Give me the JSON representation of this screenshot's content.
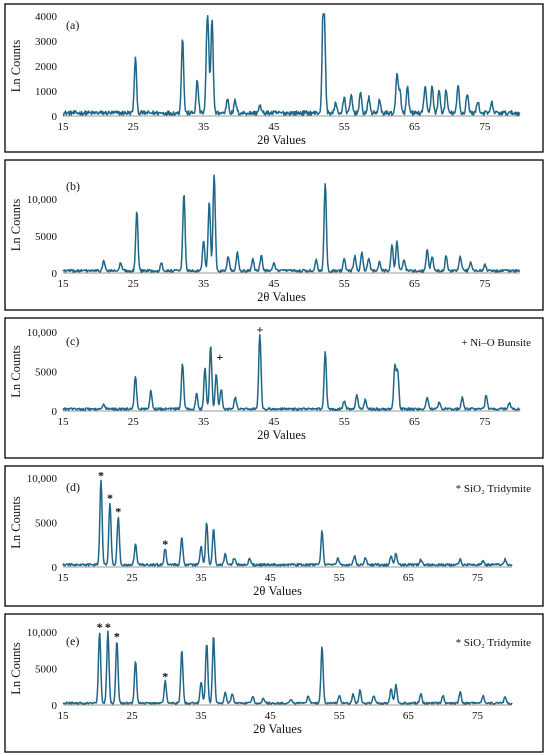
{
  "colors": {
    "trace": "#1f6788",
    "frame": "#000000",
    "axis": "#9a9a9a"
  },
  "chart_data": [
    {
      "type": "line",
      "panel_label": "(a)",
      "xlabel": "2θ Values",
      "ylabel": "Ln Counts",
      "xlim": [
        15,
        80
      ],
      "ylim": [
        0,
        4000
      ],
      "xticks": [
        "15",
        "25",
        "35",
        "45",
        "55",
        "65",
        "75"
      ],
      "yticks": [
        "0",
        "1000",
        "2000",
        "3000",
        "4000"
      ],
      "ytick_values": [
        0,
        1000,
        2000,
        3000,
        4000
      ],
      "baseline": 120,
      "noise": 90,
      "peaks": [
        [
          25.3,
          2200
        ],
        [
          32.0,
          3000
        ],
        [
          34.1,
          1300
        ],
        [
          35.5,
          3000
        ],
        [
          35.7,
          1600
        ],
        [
          36.2,
          3800
        ],
        [
          38.4,
          600
        ],
        [
          39.5,
          500
        ],
        [
          43.0,
          300
        ],
        [
          52.0,
          3500
        ],
        [
          52.2,
          2500
        ],
        [
          53.8,
          400
        ],
        [
          55.0,
          600
        ],
        [
          56.0,
          700
        ],
        [
          57.3,
          800
        ],
        [
          58.5,
          600
        ],
        [
          60.0,
          500
        ],
        [
          62.5,
          1500
        ],
        [
          62.9,
          900
        ],
        [
          64.0,
          1000
        ],
        [
          66.5,
          1100
        ],
        [
          67.5,
          1100
        ],
        [
          68.5,
          900
        ],
        [
          69.5,
          900
        ],
        [
          71.2,
          1100
        ],
        [
          72.5,
          800
        ],
        [
          74.0,
          500
        ],
        [
          76.0,
          400
        ]
      ],
      "legend": "",
      "markers": []
    },
    {
      "type": "line",
      "panel_label": "(b)",
      "xlabel": "2θ Values",
      "ylabel": "Ln Counts",
      "xlim": [
        15,
        80
      ],
      "ylim": [
        0,
        13000
      ],
      "xticks": [
        "15",
        "25",
        "35",
        "45",
        "55",
        "65",
        "75"
      ],
      "yticks": [
        "0",
        "5000",
        "10,000"
      ],
      "ytick_values": [
        0,
        5000,
        10000
      ],
      "baseline": 300,
      "noise": 180,
      "peaks": [
        [
          20.8,
          1300
        ],
        [
          23.2,
          1000
        ],
        [
          25.5,
          8000
        ],
        [
          29.0,
          1000
        ],
        [
          32.2,
          10500
        ],
        [
          35.0,
          4000
        ],
        [
          35.8,
          9500
        ],
        [
          36.5,
          13000
        ],
        [
          38.5,
          2000
        ],
        [
          39.8,
          2500
        ],
        [
          42.0,
          1500
        ],
        [
          43.2,
          2000
        ],
        [
          45.0,
          1000
        ],
        [
          51.0,
          1500
        ],
        [
          52.3,
          12000
        ],
        [
          55.0,
          1500
        ],
        [
          56.5,
          2000
        ],
        [
          57.5,
          2500
        ],
        [
          58.5,
          1800
        ],
        [
          60.0,
          1200
        ],
        [
          61.8,
          3500
        ],
        [
          62.5,
          4000
        ],
        [
          63.5,
          1500
        ],
        [
          66.8,
          2800
        ],
        [
          67.5,
          2000
        ],
        [
          69.5,
          2000
        ],
        [
          71.5,
          2000
        ],
        [
          73.0,
          1200
        ],
        [
          75.0,
          800
        ]
      ],
      "legend": "",
      "markers": []
    },
    {
      "type": "line",
      "panel_label": "(c)",
      "xlabel": "2θ Values",
      "ylabel": "Ln Counts",
      "xlim": [
        15,
        80
      ],
      "ylim": [
        0,
        10000
      ],
      "xticks": [
        "15",
        "25",
        "35",
        "45",
        "55",
        "65",
        "75"
      ],
      "yticks": [
        "0",
        "5000",
        "10,000"
      ],
      "ytick_values": [
        0,
        5000,
        10000
      ],
      "baseline": 250,
      "noise": 150,
      "peaks": [
        [
          20.8,
          500
        ],
        [
          25.3,
          4200
        ],
        [
          27.5,
          2300
        ],
        [
          32.0,
          5700
        ],
        [
          34.0,
          2000
        ],
        [
          35.2,
          5200
        ],
        [
          36.0,
          8000
        ],
        [
          36.8,
          4500
        ],
        [
          37.5,
          2500
        ],
        [
          39.5,
          1500
        ],
        [
          43.0,
          9500
        ],
        [
          52.3,
          7200
        ],
        [
          55.0,
          1000
        ],
        [
          56.8,
          1800
        ],
        [
          58.0,
          1200
        ],
        [
          62.2,
          5500
        ],
        [
          62.6,
          4800
        ],
        [
          66.8,
          1500
        ],
        [
          68.5,
          800
        ],
        [
          71.8,
          1500
        ],
        [
          75.2,
          1800
        ],
        [
          78.5,
          800
        ]
      ],
      "legend": "+  Ni–O Bunsite",
      "markers": [
        {
          "symbol": "+",
          "x": 43.0,
          "y": 9700
        },
        {
          "symbol": "+",
          "x": 37.3,
          "y": 6200
        }
      ]
    },
    {
      "type": "line",
      "panel_label": "(d)",
      "xlabel": "2θ Values",
      "ylabel": "Ln Counts",
      "xlim": [
        15,
        80
      ],
      "ylim": [
        0,
        10000
      ],
      "xticks": [
        "15",
        "25",
        "35",
        "45",
        "55",
        "65",
        "75"
      ],
      "yticks": [
        "0",
        "5000",
        "10,000"
      ],
      "ytick_values": [
        0,
        5000,
        10000
      ],
      "baseline": 250,
      "noise": 130,
      "peaks": [
        [
          20.5,
          9500
        ],
        [
          21.8,
          7000
        ],
        [
          23.0,
          5500
        ],
        [
          25.5,
          2300
        ],
        [
          29.8,
          1800
        ],
        [
          32.2,
          3000
        ],
        [
          35.0,
          2000
        ],
        [
          35.8,
          4700
        ],
        [
          36.8,
          4000
        ],
        [
          38.5,
          1200
        ],
        [
          39.8,
          800
        ],
        [
          42.0,
          700
        ],
        [
          52.5,
          3800
        ],
        [
          54.8,
          700
        ],
        [
          57.2,
          1000
        ],
        [
          58.8,
          800
        ],
        [
          62.5,
          1000
        ],
        [
          63.2,
          1300
        ],
        [
          66.8,
          600
        ],
        [
          72.5,
          600
        ],
        [
          75.8,
          400
        ],
        [
          79.0,
          600
        ]
      ],
      "legend": "*  SiO₂ Tridymite",
      "markers": [
        {
          "symbol": "*",
          "x": 20.5,
          "y": 9700
        },
        {
          "symbol": "*",
          "x": 21.8,
          "y": 7200
        },
        {
          "symbol": "*",
          "x": 23.0,
          "y": 5700
        },
        {
          "symbol": "*",
          "x": 29.8,
          "y": 2000
        }
      ]
    },
    {
      "type": "line",
      "panel_label": "(e)",
      "xlabel": "2θ Values",
      "ylabel": "Ln Counts",
      "xlim": [
        15,
        80
      ],
      "ylim": [
        0,
        10000
      ],
      "xticks": [
        "15",
        "25",
        "35",
        "45",
        "55",
        "65",
        "75"
      ],
      "yticks": [
        "0",
        "5000",
        "10,000"
      ],
      "ytick_values": [
        0,
        5000,
        10000
      ],
      "baseline": 250,
      "noise": 130,
      "peaks": [
        [
          20.3,
          9800
        ],
        [
          21.5,
          9800
        ],
        [
          22.8,
          8500
        ],
        [
          25.5,
          5800
        ],
        [
          29.8,
          3000
        ],
        [
          32.2,
          7200
        ],
        [
          35.0,
          3000
        ],
        [
          35.8,
          8200
        ],
        [
          36.8,
          9200
        ],
        [
          38.5,
          1500
        ],
        [
          39.5,
          1300
        ],
        [
          42.5,
          800
        ],
        [
          44.0,
          700
        ],
        [
          48.0,
          600
        ],
        [
          50.5,
          1000
        ],
        [
          52.5,
          7800
        ],
        [
          55.0,
          1000
        ],
        [
          57.0,
          1200
        ],
        [
          58.0,
          1800
        ],
        [
          60.0,
          1000
        ],
        [
          62.5,
          2000
        ],
        [
          63.2,
          2600
        ],
        [
          66.8,
          1200
        ],
        [
          70.0,
          1000
        ],
        [
          72.5,
          1500
        ],
        [
          75.8,
          1000
        ],
        [
          79.0,
          900
        ]
      ],
      "legend": "*  SiO₂ Tridymite",
      "markers": [
        {
          "symbol": "*",
          "x": 20.3,
          "y": 10000
        },
        {
          "symbol": "*",
          "x": 21.5,
          "y": 10000
        },
        {
          "symbol": "*",
          "x": 22.8,
          "y": 8700
        },
        {
          "symbol": "*",
          "x": 29.8,
          "y": 3200
        }
      ]
    }
  ]
}
